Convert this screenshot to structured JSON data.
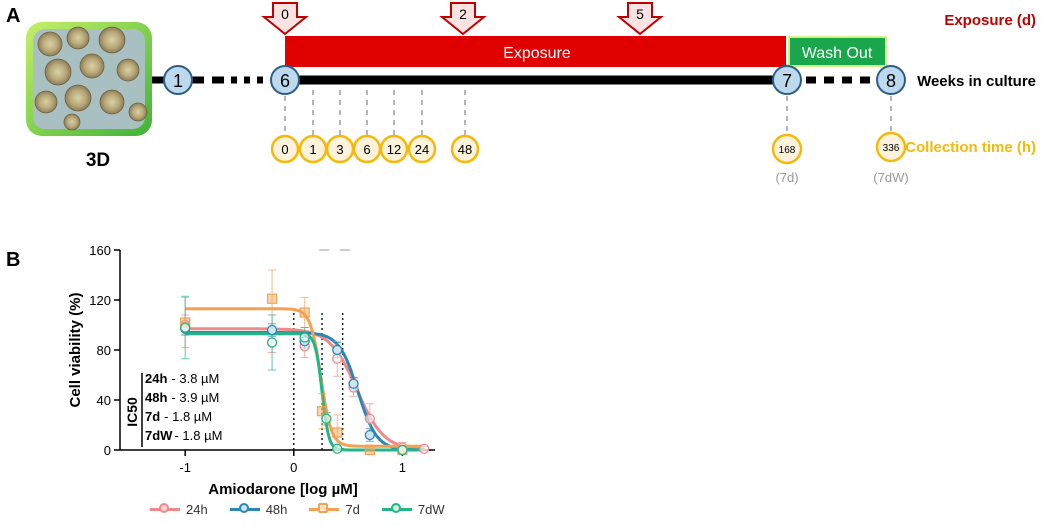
{
  "panel_a": {
    "label": "A",
    "model_label": "3D",
    "exposure_bar_label": "Exposure",
    "washout_label": "Wash Out",
    "exposure_axis_title": "Exposure (d)",
    "weeks_axis_title": "Weeks in culture",
    "collection_axis_title": "Collection time (h)",
    "exposure_days": [
      "0",
      "2",
      "5"
    ],
    "weeks": [
      "1",
      "6",
      "7",
      "8"
    ],
    "collection_times": [
      "0",
      "1",
      "3",
      "6",
      "12",
      "24",
      "48",
      "168",
      "336"
    ],
    "collection_notes": [
      "(7d)",
      "(7dW)"
    ],
    "colors": {
      "exposure": "#e00000",
      "washout": "#1aa64a",
      "arrow": "#c00000",
      "week_circle_fill": "#bcd9ee",
      "week_circle_stroke": "#2d5d87",
      "collection_circle_fill": "#fdf3dc",
      "collection_circle_stroke": "#f5b90a",
      "collection_title": "#f5b90a",
      "exposure_title": "#c00000"
    }
  },
  "panel_b": {
    "label": "B",
    "ic50_label": "IC50",
    "ic50": [
      {
        "group": "24h",
        "value": "- 3.8 µM"
      },
      {
        "group": "48h",
        "value": "- 3.9 µM"
      },
      {
        "group": "7d",
        "value": "- 1.8 µM"
      },
      {
        "group": "7dW",
        "value": "- 1.8 µM"
      }
    ]
  },
  "chart_data": {
    "type": "scatter",
    "xlabel": "Amiodarone [log µM]",
    "ylabel": "Cell viability (%)",
    "xlim": [
      -1.6,
      1.3
    ],
    "ylim": [
      0,
      160
    ],
    "xticks": [
      "-1",
      "0",
      "1"
    ],
    "yticks": [
      "0",
      "40",
      "80",
      "120",
      "160"
    ],
    "grid": false,
    "legend_position": "bottom",
    "vertical_reference_lines_x": [
      0,
      0.26,
      0.45
    ],
    "series": [
      {
        "name": "24h",
        "color": "#f08a8a",
        "marker": "circle",
        "x": [
          -1,
          -0.2,
          0.1,
          0.4,
          0.55,
          0.7,
          1.0,
          1.2
        ],
        "y": [
          100,
          86,
          83,
          73,
          50,
          25,
          2,
          1
        ],
        "err": [
          8,
          8,
          9,
          14,
          7,
          12,
          4,
          2
        ],
        "fit": {
          "top": 97,
          "bottom": 0,
          "log_ic50": 0.58,
          "hill": 3.5
        }
      },
      {
        "name": "48h",
        "color": "#2a88b7",
        "marker": "diamond",
        "x": [
          -1,
          -0.2,
          0.1,
          0.4,
          0.55,
          0.7,
          1.0
        ],
        "y": [
          97,
          96,
          87,
          80,
          53,
          12,
          0
        ],
        "err": [
          5,
          5,
          6,
          6,
          5,
          5,
          2
        ],
        "fit": {
          "top": 94,
          "bottom": 0,
          "log_ic50": 0.59,
          "hill": 5
        }
      },
      {
        "name": "7d",
        "color": "#f4a154",
        "marker": "square",
        "x": [
          -1,
          -0.2,
          0.1,
          0.26,
          0.4,
          0.7,
          1.0
        ],
        "y": [
          102,
          121,
          110,
          31,
          14,
          0,
          0
        ],
        "err": [
          20,
          23,
          12,
          14,
          14,
          4,
          2
        ],
        "fit": {
          "top": 113,
          "bottom": 3,
          "log_ic50": 0.25,
          "hill": 9
        }
      },
      {
        "name": "7dW",
        "color": "#23b585",
        "marker": "circle",
        "x": [
          -1,
          -0.2,
          0.1,
          0.3,
          0.4,
          1.0
        ],
        "y": [
          98,
          86,
          90,
          25,
          1,
          0
        ],
        "err": [
          25,
          22,
          8,
          5,
          2,
          1
        ],
        "fit": {
          "top": 93,
          "bottom": 0,
          "log_ic50": 0.26,
          "hill": 14
        }
      }
    ]
  }
}
